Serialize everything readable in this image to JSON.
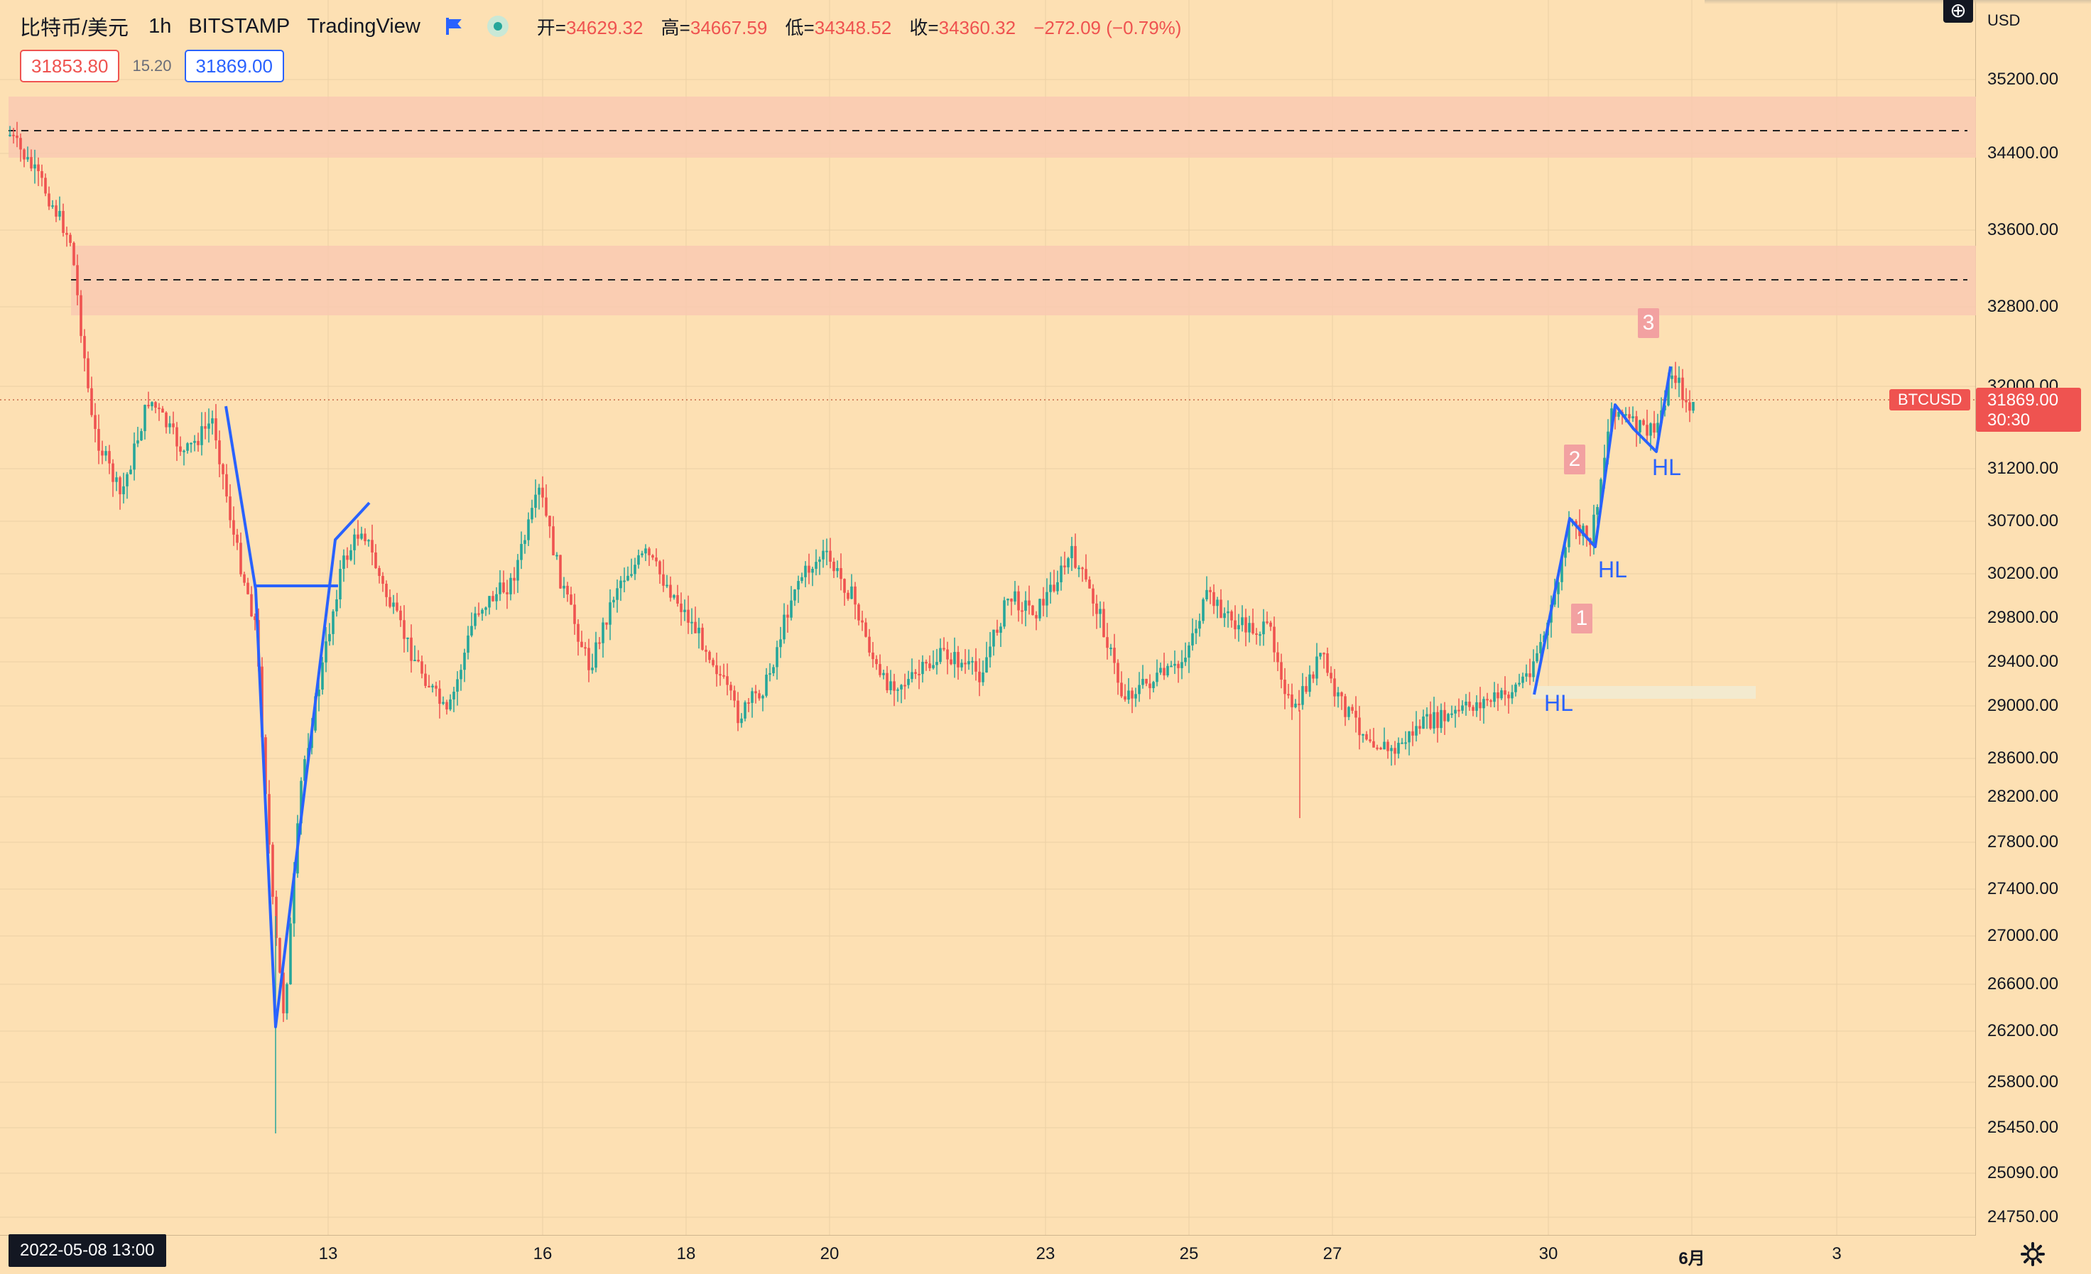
{
  "symbol": {
    "name": "比特币/美元",
    "timeframe": "1h",
    "exchange": "BITSTAMP",
    "source": "TradingView"
  },
  "ohlc": {
    "open_label": "开=",
    "open": "34629.32",
    "high_label": "高=",
    "high": "34667.59",
    "low_label": "低=",
    "low": "34348.52",
    "close_label": "收=",
    "close": "34360.32",
    "change": "−272.09 (−0.79%)"
  },
  "trade": {
    "sell": "31853.80",
    "spread": "15.20",
    "buy": "31869.00"
  },
  "axis": {
    "currency": "USD",
    "y_ticks": [
      "35200.00",
      "34400.00",
      "33600.00",
      "32800.00",
      "32000.00",
      "31200.00",
      "30700.00",
      "30200.00",
      "29800.00",
      "29400.00",
      "29000.00",
      "28600.00",
      "28200.00",
      "27800.00",
      "27400.00",
      "27000.00",
      "26600.00",
      "26200.00",
      "25800.00",
      "25450.00",
      "25090.00",
      "24750.00"
    ],
    "x_ticks": [
      "13",
      "16",
      "18",
      "20",
      "23",
      "25",
      "27",
      "30",
      "6月",
      "3"
    ],
    "crosshair_date": "2022-05-08   13:00"
  },
  "last": {
    "ticker": "BTCUSD",
    "price": "31869.00",
    "countdown": "30:30"
  },
  "annotations": {
    "hl1": "HL",
    "hl2": "HL",
    "hl3": "HL",
    "n1": "1",
    "n2": "2",
    "n3": "3"
  },
  "colors": {
    "background": "#fde0b3",
    "up": "#26a69a",
    "down": "#ef5350",
    "zone": "#f9c9b2",
    "trend_line": "#2962ff"
  },
  "icons": [
    "add-icon",
    "flag-icon",
    "market-status-icon",
    "settings-icon"
  ]
}
